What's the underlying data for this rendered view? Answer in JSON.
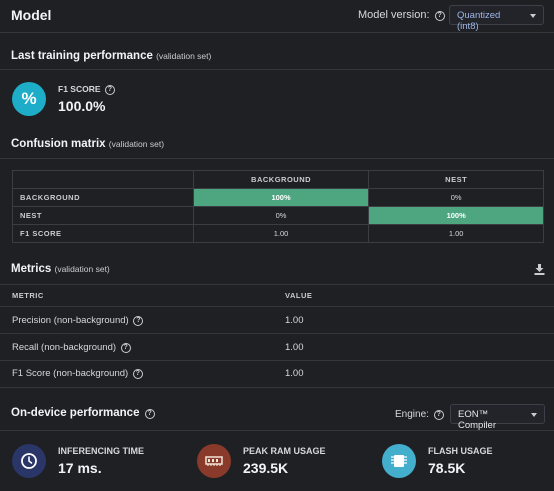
{
  "header": {
    "title": "Model",
    "model_version_label": "Model version:",
    "model_version_value": "Quantized (int8)"
  },
  "training": {
    "title": "Last training performance",
    "subtitle": "(validation set)",
    "f1_label": "F1 SCORE",
    "f1_value": "100.0%",
    "f1_icon_glyph": "%"
  },
  "confusion": {
    "title": "Confusion matrix",
    "subtitle": "(validation set)",
    "columns": [
      "BACKGROUND",
      "NEST"
    ],
    "rows": [
      {
        "label": "BACKGROUND",
        "cells": [
          "100%",
          "0%"
        ]
      },
      {
        "label": "NEST",
        "cells": [
          "0%",
          "100%"
        ]
      },
      {
        "label": "F1 SCORE",
        "cells": [
          "1.00",
          "1.00"
        ]
      }
    ],
    "highlight_color": "#4ea680"
  },
  "metrics": {
    "title": "Metrics",
    "subtitle": "(validation set)",
    "col_metric": "METRIC",
    "col_value": "VALUE",
    "rows": [
      {
        "name": "Precision (non-background)",
        "value": "1.00"
      },
      {
        "name": "Recall (non-background)",
        "value": "1.00"
      },
      {
        "name": "F1 Score (non-background)",
        "value": "1.00"
      }
    ]
  },
  "ondevice": {
    "title": "On-device performance",
    "engine_label": "Engine:",
    "engine_value": "EON™ Compiler",
    "items": [
      {
        "label": "INFERENCING TIME",
        "value": "17 ms.",
        "icon": "clock-icon",
        "color": "#2a3568"
      },
      {
        "label": "PEAK RAM USAGE",
        "value": "239.5K",
        "icon": "ram-chip-icon",
        "color": "#8a3a2a"
      },
      {
        "label": "FLASH USAGE",
        "value": "78.5K",
        "icon": "flash-chip-icon",
        "color": "#44aecd"
      }
    ]
  },
  "colors": {
    "background": "#1f2023",
    "accent_teal": "#1dadc9",
    "select_text": "#9fb7ea"
  }
}
